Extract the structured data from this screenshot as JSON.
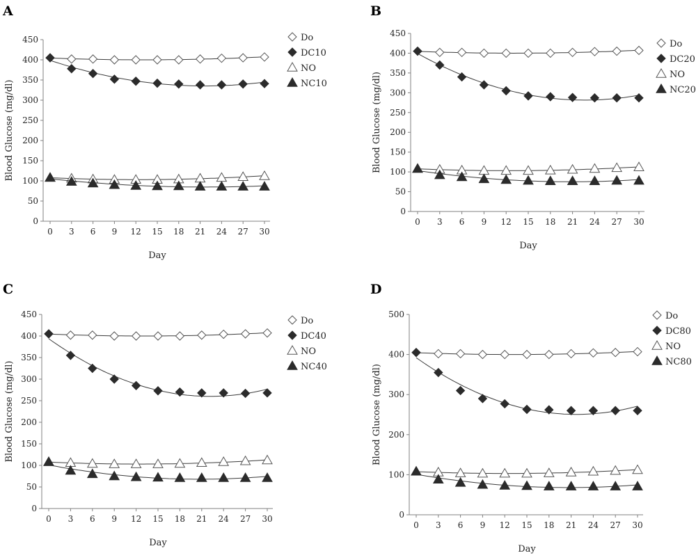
{
  "chart_data": [
    {
      "panel": "A",
      "type": "scatter",
      "xlabel": "Day",
      "ylabel": "Blood Glucose (mg/dl)",
      "ylim": [
        0,
        450
      ],
      "ytick_step": 50,
      "x": [
        0,
        3,
        6,
        9,
        12,
        15,
        18,
        21,
        24,
        27,
        30
      ],
      "series": [
        {
          "name": "Do",
          "marker": "diamond-open",
          "values": [
            405,
            402,
            402,
            400,
            400,
            400,
            400,
            402,
            404,
            405,
            407
          ]
        },
        {
          "name": "DC10",
          "marker": "diamond-filled",
          "values": [
            405,
            378,
            366,
            352,
            347,
            342,
            340,
            338,
            338,
            340,
            341
          ]
        },
        {
          "name": "NO",
          "marker": "triangle-open",
          "values": [
            108,
            106,
            104,
            103,
            103,
            103,
            104,
            106,
            108,
            110,
            112
          ]
        },
        {
          "name": "NC10",
          "marker": "triangle-filled",
          "values": [
            108,
            98,
            94,
            90,
            88,
            87,
            87,
            86,
            86,
            86,
            86
          ]
        }
      ]
    },
    {
      "panel": "B",
      "type": "scatter",
      "xlabel": "Day",
      "ylabel": "Blood Glucose (mg/dl)",
      "ylim": [
        0,
        450
      ],
      "ytick_step": 50,
      "x": [
        0,
        3,
        6,
        9,
        12,
        15,
        18,
        21,
        24,
        27,
        30
      ],
      "series": [
        {
          "name": "Do",
          "marker": "diamond-open",
          "values": [
            405,
            402,
            402,
            400,
            400,
            400,
            400,
            402,
            404,
            405,
            407
          ]
        },
        {
          "name": "DC20",
          "marker": "diamond-filled",
          "values": [
            405,
            370,
            340,
            320,
            305,
            292,
            290,
            288,
            287,
            287,
            287
          ]
        },
        {
          "name": "NO",
          "marker": "triangle-open",
          "values": [
            108,
            106,
            104,
            103,
            103,
            103,
            104,
            106,
            108,
            110,
            112
          ]
        },
        {
          "name": "NC20",
          "marker": "triangle-filled",
          "values": [
            108,
            92,
            87,
            82,
            80,
            78,
            77,
            77,
            77,
            78,
            78
          ]
        }
      ]
    },
    {
      "panel": "C",
      "type": "scatter",
      "xlabel": "Day",
      "ylabel": "Blood Glucose (mg/dl)",
      "ylim": [
        0,
        450
      ],
      "ytick_step": 50,
      "x": [
        0,
        3,
        6,
        9,
        12,
        15,
        18,
        21,
        24,
        27,
        30
      ],
      "series": [
        {
          "name": "Do",
          "marker": "diamond-open",
          "values": [
            405,
            402,
            402,
            400,
            400,
            400,
            400,
            402,
            404,
            405,
            407
          ]
        },
        {
          "name": "DC40",
          "marker": "diamond-filled",
          "values": [
            405,
            355,
            325,
            300,
            285,
            273,
            270,
            268,
            268,
            267,
            268
          ]
        },
        {
          "name": "NO",
          "marker": "triangle-open",
          "values": [
            108,
            106,
            104,
            103,
            103,
            103,
            104,
            106,
            108,
            110,
            112
          ]
        },
        {
          "name": "NC40",
          "marker": "triangle-filled",
          "values": [
            108,
            88,
            80,
            75,
            73,
            72,
            71,
            71,
            71,
            71,
            71
          ]
        }
      ]
    },
    {
      "panel": "D",
      "type": "scatter",
      "xlabel": "Day",
      "ylabel": "Blood Glucose (mg/dl)",
      "ylim": [
        0,
        500
      ],
      "ytick_step": 100,
      "x": [
        0,
        3,
        6,
        9,
        12,
        15,
        18,
        21,
        24,
        27,
        30
      ],
      "series": [
        {
          "name": "Do",
          "marker": "diamond-open",
          "values": [
            405,
            402,
            402,
            400,
            400,
            400,
            400,
            402,
            404,
            405,
            407
          ]
        },
        {
          "name": "DC80",
          "marker": "diamond-filled",
          "values": [
            405,
            355,
            310,
            290,
            277,
            263,
            262,
            260,
            260,
            260,
            260
          ]
        },
        {
          "name": "NO",
          "marker": "triangle-open",
          "values": [
            108,
            106,
            104,
            103,
            103,
            103,
            104,
            106,
            108,
            110,
            112
          ]
        },
        {
          "name": "NC80",
          "marker": "triangle-filled",
          "values": [
            108,
            88,
            80,
            75,
            73,
            72,
            71,
            71,
            71,
            71,
            71
          ]
        }
      ]
    }
  ],
  "colors": {
    "axis": "#808080",
    "marker": "#2b2b2b",
    "trend": "#3a3a3a"
  }
}
